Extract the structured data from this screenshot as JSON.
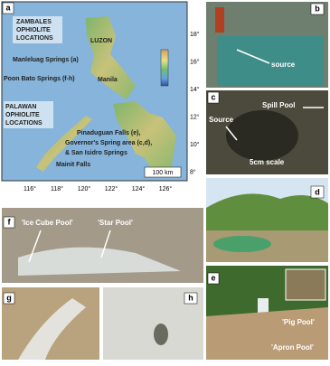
{
  "map": {
    "panel": "a",
    "zambales_title": [
      "ZAMBALES",
      "OPHIOLITE",
      "LOCATIONS"
    ],
    "palawan_title": [
      "PALAWAN",
      "OPHIOLITE",
      "LOCATIONS"
    ],
    "luzon": "LUZON",
    "manleluag": "Manleluag Springs (a)",
    "manila": "Manila",
    "poon_bato": "Poon Bato Springs (f-h)",
    "palawan_sites": [
      "Pinaduguan Falls (e),",
      "Governor's Spring area (c,d),",
      "& San Isidro Springs"
    ],
    "mainit": "Mainit Falls",
    "scale": "100 km",
    "lat_ticks": [
      "18°",
      "16°",
      "14°",
      "12°",
      "10°",
      "8°"
    ],
    "lon_ticks": [
      "116°",
      "118°",
      "120°",
      "122°",
      "124°",
      "126°"
    ]
  },
  "panels": {
    "b": {
      "letter": "b",
      "label": "source"
    },
    "c": {
      "letter": "c",
      "spill": "Spill Pool",
      "source": "Source",
      "scale": "5cm scale"
    },
    "d": {
      "letter": "d"
    },
    "e": {
      "letter": "e",
      "pig": "'Pig Pool'",
      "apron": "'Apron Pool'"
    },
    "f": {
      "letter": "f",
      "ice": "'Ice Cube Pool'",
      "star": "'Star Pool'"
    },
    "g": {
      "letter": "g"
    },
    "h": {
      "letter": "h"
    }
  }
}
